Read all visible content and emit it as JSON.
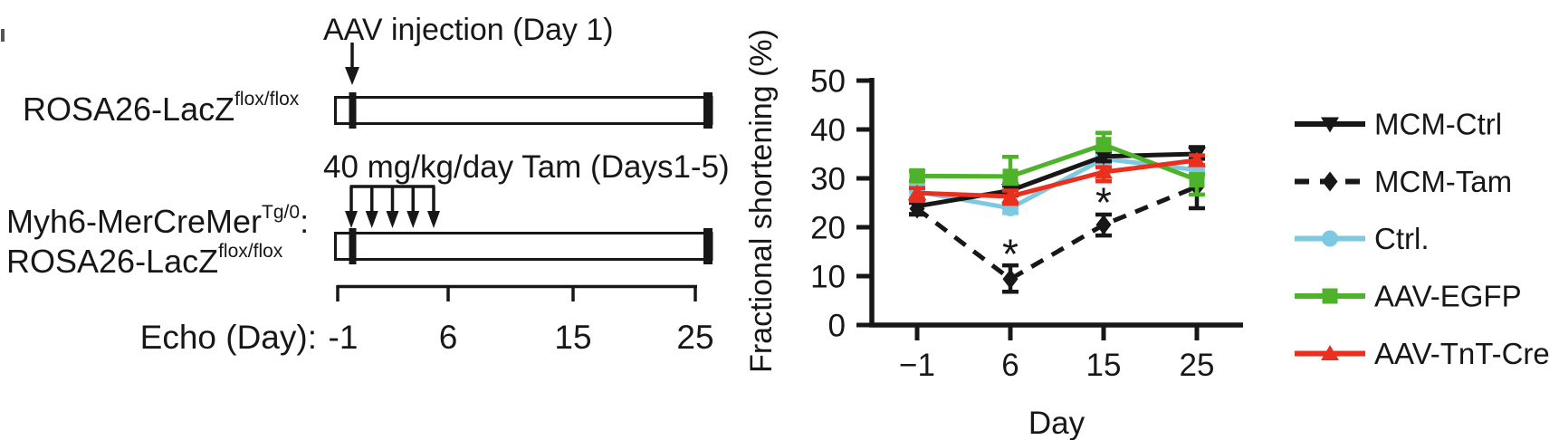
{
  "diagram": {
    "aav_label": "AAV injection (Day 1)",
    "tam_label": "40 mg/kg/day Tam (Days1-5)",
    "genotype1": {
      "base": "ROSA26-LacZ",
      "sup": "flox/flox"
    },
    "genotype2": {
      "line1_base": "Myh6-MerCreMer",
      "line1_sup": "Tg/0",
      "line1_colon": ":",
      "line2_base": "ROSA26-LacZ",
      "line2_sup": "flox/flox"
    },
    "echo_axis": {
      "label": "Echo (Day):",
      "ticks": [
        "-1",
        "6",
        "15",
        "25"
      ]
    }
  },
  "chart_data": {
    "type": "line",
    "xlabel": "Day",
    "ylabel": "Fractional shortening (%)",
    "x_values": [
      -1,
      6,
      15,
      25
    ],
    "x_tick_labels": [
      "−1",
      "6",
      "15",
      "25"
    ],
    "y_ticks": [
      0,
      10,
      20,
      30,
      40,
      50
    ],
    "ylim": [
      0,
      50
    ],
    "grid": false,
    "legend_position": "right",
    "series": [
      {
        "name": "MCM-Ctrl",
        "color": "#171717",
        "marker": "triangle-down",
        "line": "solid",
        "values": [
          24.3,
          27.5,
          34.5,
          35.0
        ],
        "err_up": [
          1.2,
          1.0,
          1.0,
          1.4
        ],
        "err_dn": [
          1.6,
          1.0,
          1.0,
          1.0
        ]
      },
      {
        "name": "MCM-Tam",
        "color": "#171717",
        "marker": "diamond",
        "line": "dashed",
        "values": [
          23.8,
          9.4,
          20.5,
          28.3
        ],
        "err_up": [
          1.2,
          2.8,
          2.1,
          0
        ],
        "err_dn": [
          1.2,
          2.6,
          2.2,
          4.4
        ]
      },
      {
        "name": "Ctrl.",
        "color": "#7dc9e2",
        "marker": "circle",
        "line": "solid",
        "values": [
          27.3,
          23.9,
          34.0,
          31.7
        ],
        "err_up": [
          1.2,
          1.0,
          0.8,
          0.8
        ],
        "err_dn": [
          1.2,
          1.0,
          0.8,
          0.8
        ]
      },
      {
        "name": "AAV-EGFP",
        "color": "#4eb32b",
        "marker": "square",
        "line": "solid",
        "values": [
          30.5,
          30.4,
          36.9,
          29.7
        ],
        "err_up": [
          1.0,
          4.0,
          2.4,
          1.0
        ],
        "err_dn": [
          1.0,
          1.5,
          1.0,
          3.0
        ]
      },
      {
        "name": "AAV-TnT-Cre",
        "color": "#e9301f",
        "marker": "triangle-up",
        "line": "solid",
        "values": [
          27.0,
          26.3,
          31.3,
          33.7
        ],
        "err_up": [
          1.0,
          1.2,
          1.0,
          1.0
        ],
        "err_dn": [
          1.6,
          1.5,
          1.9,
          1.0
        ]
      }
    ],
    "annotations": [
      {
        "text": "*",
        "x": 6,
        "y": 15.5
      },
      {
        "text": "*",
        "x": 15,
        "y": 26.0
      }
    ]
  }
}
